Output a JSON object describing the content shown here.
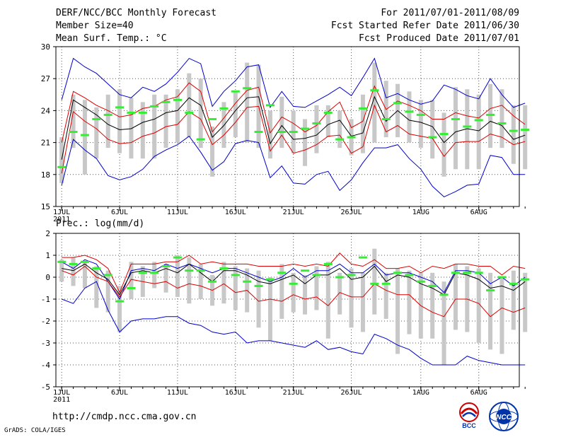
{
  "header": {
    "title": "DERF/NCC/BCC Monthly Forecast",
    "member_size": "Member Size=40",
    "variable1": "Mean Surf. Temp.: °C",
    "period": "For 2011/07/01-2011/08/09",
    "started": "Fcst Started Refer Date 2011/06/30",
    "produced": "Fcst Produced Date 2011/07/01"
  },
  "footer": {
    "url": "http://cmdp.ncc.cma.gov.cn",
    "credit": "GrADS: COLA/IGES",
    "logo1": "BCC",
    "logo2": "NCC"
  },
  "colors": {
    "bar": "#c8c8c8",
    "green": "#33ee33",
    "mean": "#000000",
    "sd": "#dd0000",
    "minmax": "#0000cc",
    "grid": "#555555"
  },
  "chart_data": [
    {
      "type": "line",
      "name": "temperature",
      "ylabel": "Mean Surf. Temp.: °C",
      "ylim": [
        15,
        30
      ],
      "yticks": [
        15,
        18,
        21,
        24,
        27,
        30
      ],
      "xlim": [
        0.5,
        40.5
      ],
      "xticks": [
        {
          "day": 1,
          "label": "1JUL",
          "sub": "2011"
        },
        {
          "day": 6,
          "label": "6JUL"
        },
        {
          "day": 11,
          "label": "11JUL"
        },
        {
          "day": 16,
          "label": "16JUL"
        },
        {
          "day": 21,
          "label": "21JUL"
        },
        {
          "day": 26,
          "label": "26JUL"
        },
        {
          "day": 32,
          "label": "1AUG"
        },
        {
          "day": 37,
          "label": "6AUG"
        }
      ],
      "series": [
        {
          "name": "max",
          "values": [
            25.0,
            28.9,
            28.1,
            27.5,
            26.5,
            25.5,
            25.2,
            26.2,
            25.8,
            26.5,
            27.6,
            28.9,
            28.4,
            24.4,
            25.8,
            26.8,
            28.1,
            28.3,
            24.3,
            25.8,
            24.4,
            24.3,
            24.9,
            25.5,
            26.2,
            25.4,
            27.1,
            28.9,
            25.2,
            25.6,
            25.0,
            24.6,
            24.9,
            26.4,
            26.0,
            25.4,
            25.1,
            27.0,
            25.5,
            24.3,
            24.7
          ]
        },
        {
          "name": "sd_upper",
          "values": [
            21.0,
            25.8,
            25.2,
            24.5,
            24.0,
            23.4,
            23.6,
            24.2,
            24.4,
            25.0,
            25.3,
            26.6,
            25.8,
            22.0,
            23.3,
            24.7,
            25.9,
            26.2,
            21.9,
            23.4,
            22.8,
            22.0,
            22.6,
            23.9,
            24.8,
            22.4,
            23.0,
            26.3,
            24.1,
            24.9,
            24.5,
            24.0,
            23.2,
            23.2,
            23.8,
            23.5,
            23.3,
            24.2,
            24.5,
            23.5,
            22.7
          ]
        },
        {
          "name": "mean",
          "values": [
            19.4,
            25.0,
            24.3,
            23.6,
            22.7,
            22.2,
            22.3,
            22.9,
            23.2,
            23.8,
            24.0,
            25.2,
            24.5,
            21.5,
            22.6,
            24.0,
            25.2,
            25.3,
            20.9,
            22.6,
            21.3,
            21.4,
            21.7,
            22.7,
            23.1,
            21.6,
            21.9,
            25.3,
            23.0,
            24.0,
            23.1,
            22.9,
            22.5,
            21.0,
            22.0,
            22.3,
            22.1,
            23.0,
            22.6,
            21.3,
            21.7
          ]
        },
        {
          "name": "sd_lower",
          "values": [
            18.1,
            23.9,
            23.0,
            22.3,
            21.3,
            20.9,
            21.0,
            21.6,
            21.9,
            22.5,
            22.7,
            23.9,
            23.2,
            20.8,
            21.7,
            22.9,
            24.3,
            24.4,
            20.2,
            21.7,
            20.0,
            20.3,
            20.8,
            21.6,
            21.7,
            20.0,
            20.6,
            24.5,
            22.0,
            22.6,
            21.8,
            21.6,
            21.4,
            19.7,
            21.0,
            21.1,
            21.1,
            21.8,
            21.5,
            20.8,
            21.1
          ]
        },
        {
          "name": "min",
          "values": [
            17.0,
            21.3,
            20.3,
            19.5,
            17.9,
            17.5,
            17.8,
            18.5,
            19.7,
            20.3,
            20.8,
            21.6,
            20.1,
            18.4,
            19.2,
            20.9,
            21.2,
            21.0,
            17.7,
            18.8,
            17.2,
            17.1,
            18.0,
            18.3,
            16.5,
            17.5,
            19.1,
            20.5,
            20.5,
            20.8,
            19.5,
            18.5,
            16.9,
            15.9,
            16.4,
            17.0,
            17.1,
            19.8,
            19.6,
            18.0,
            18.0
          ]
        },
        {
          "name": "bar_top",
          "values": [
            21.5,
            25.5,
            25.0,
            24.3,
            25.5,
            26.0,
            25.2,
            24.8,
            25.5,
            25.5,
            26.0,
            27.5,
            27.0,
            22.5,
            24.8,
            25.8,
            28.5,
            28.3,
            24.0,
            25.3,
            24.0,
            23.2,
            24.5,
            24.5,
            24.0,
            23.2,
            25.5,
            28.5,
            26.8,
            26.5,
            25.8,
            25.0,
            25.0,
            23.8,
            26.2,
            26.0,
            25.5,
            26.5,
            26.0,
            24.5,
            24.5
          ]
        },
        {
          "name": "bar_bottom",
          "values": [
            17.2,
            20.5,
            18.0,
            19.5,
            20.5,
            20.0,
            19.5,
            19.5,
            19.5,
            20.5,
            21.0,
            21.5,
            20.5,
            17.8,
            20.5,
            21.5,
            21.0,
            20.5,
            19.5,
            20.5,
            20.0,
            18.8,
            20.0,
            21.5,
            20.5,
            19.8,
            20.0,
            21.0,
            21.5,
            21.5,
            21.0,
            20.5,
            19.5,
            17.8,
            18.5,
            18.5,
            18.5,
            20.5,
            20.5,
            19.0,
            18.5
          ]
        },
        {
          "name": "obs_green",
          "values": [
            18.7,
            22.0,
            21.7,
            23.2,
            23.6,
            24.3,
            23.8,
            23.8,
            24.4,
            24.8,
            25.0,
            23.8,
            21.3,
            23.2,
            24.2,
            25.8,
            26.1,
            22.0,
            24.5,
            22.0,
            22.0,
            22.3,
            22.8,
            23.8,
            21.3,
            21.5,
            24.2,
            25.9,
            23.2,
            24.7,
            23.9,
            23.6,
            21.5,
            21.8,
            23.2,
            22.5,
            23.1,
            23.6,
            22.8,
            22.1,
            22.2
          ]
        }
      ]
    },
    {
      "type": "line",
      "name": "precipitation",
      "ylabel": "Prec.: log(mm/d)",
      "ylim": [
        -5,
        2
      ],
      "yticks": [
        -5,
        -4,
        -3,
        -2,
        -1,
        0,
        1,
        2
      ],
      "xlim": [
        0.5,
        40.5
      ],
      "xticks": [
        {
          "day": 1,
          "label": "1JUL",
          "sub": "2011"
        },
        {
          "day": 6,
          "label": "6JUL"
        },
        {
          "day": 11,
          "label": "11JUL"
        },
        {
          "day": 16,
          "label": "16JUL"
        },
        {
          "day": 21,
          "label": "21JUL"
        },
        {
          "day": 26,
          "label": "26JUL"
        },
        {
          "day": 32,
          "label": "1AUG"
        },
        {
          "day": 37,
          "label": "6AUG"
        }
      ],
      "series": [
        {
          "name": "max",
          "values": [
            -1.0,
            -1.2,
            -0.5,
            -0.2,
            -1.5,
            -2.5,
            -2.0,
            -1.9,
            -1.9,
            -1.8,
            -1.8,
            -2.1,
            -2.2,
            -2.5,
            -2.6,
            -2.5,
            -3.0,
            -2.9,
            -2.9,
            -3.0,
            -3.1,
            -3.2,
            -2.9,
            -3.3,
            -3.2,
            -3.4,
            -3.5,
            -2.6,
            -2.8,
            -3.1,
            -3.3,
            -3.7,
            -4.0,
            -4.0,
            -4.0,
            -3.6,
            -3.8,
            -3.9,
            -4.0,
            -4.0,
            -4.0
          ]
        },
        {
          "name": "sd_upper",
          "values": [
            0.9,
            0.9,
            1.0,
            0.8,
            0.4,
            -0.7,
            0.6,
            0.6,
            0.6,
            0.7,
            0.7,
            1.0,
            0.6,
            0.7,
            0.6,
            0.6,
            0.6,
            0.5,
            0.5,
            0.5,
            0.6,
            0.5,
            0.6,
            0.5,
            1.1,
            0.6,
            0.5,
            0.8,
            0.4,
            0.4,
            0.5,
            0.2,
            0.5,
            0.4,
            0.6,
            0.6,
            0.5,
            0.5,
            0.1,
            0.5,
            0.4
          ]
        },
        {
          "name": "mean",
          "values": [
            0.4,
            0.3,
            0.6,
            0.2,
            -0.1,
            -0.8,
            0.2,
            0.3,
            0.2,
            0.4,
            0.2,
            0.6,
            0.2,
            -0.2,
            0.3,
            0.3,
            0.1,
            -0.2,
            -0.3,
            -0.1,
            0.1,
            -0.3,
            0.1,
            0.1,
            0.4,
            -0.1,
            0.0,
            0.5,
            -0.2,
            0.1,
            0.0,
            -0.3,
            -0.5,
            -0.8,
            0.2,
            0.1,
            -0.1,
            -0.5,
            -0.4,
            -0.6,
            -0.2
          ]
        },
        {
          "name": "sd_lower",
          "values": [
            0.3,
            0.1,
            0.5,
            0.0,
            -0.2,
            -0.9,
            -0.1,
            -0.2,
            -0.3,
            -0.2,
            -0.5,
            -0.3,
            -0.4,
            -0.6,
            -0.3,
            -0.7,
            -0.6,
            -1.1,
            -1.0,
            -1.1,
            -0.8,
            -1.0,
            -0.9,
            -1.3,
            -0.7,
            -0.9,
            -0.9,
            -0.3,
            -0.6,
            -0.8,
            -0.8,
            -1.3,
            -1.6,
            -1.8,
            -1.0,
            -1.0,
            -1.2,
            -1.8,
            -1.4,
            -1.6,
            -1.4
          ]
        },
        {
          "name": "min",
          "values": [
            0.7,
            0.4,
            0.8,
            0.6,
            -0.2,
            -1.0,
            0.3,
            0.4,
            0.3,
            0.6,
            0.4,
            0.6,
            0.4,
            0.2,
            0.4,
            0.4,
            0.2,
            0.0,
            -0.2,
            0.0,
            0.4,
            0.0,
            0.3,
            0.3,
            0.6,
            0.2,
            0.2,
            0.6,
            0.1,
            0.2,
            0.2,
            0.0,
            -0.2,
            -0.7,
            0.3,
            0.3,
            0.2,
            -0.3,
            0.0,
            -0.4,
            0.0
          ]
        },
        {
          "name": "bar_top",
          "values": [
            0.8,
            0.9,
            0.7,
            0.5,
            0.3,
            -0.4,
            0.7,
            0.5,
            0.7,
            0.6,
            1.0,
            0.9,
            0.6,
            0.1,
            0.7,
            0.5,
            0.4,
            0.3,
            0.0,
            0.6,
            0.2,
            0.1,
            0.5,
            0.7,
            0.2,
            0.4,
            0.2,
            1.3,
            0.2,
            0.4,
            0.3,
            0.2,
            0.2,
            -0.2,
            0.6,
            0.5,
            0.4,
            0.2,
            0.0,
            0.3,
            0.2
          ]
        },
        {
          "name": "bar_bottom",
          "values": [
            -0.2,
            -0.4,
            -0.5,
            -1.4,
            -1.6,
            -2.5,
            -1.0,
            -0.9,
            -0.5,
            -0.7,
            -0.9,
            -1.2,
            -1.0,
            -1.3,
            -1.2,
            -1.5,
            -1.6,
            -2.3,
            -2.9,
            -1.9,
            -1.6,
            -1.7,
            -1.5,
            -2.8,
            -1.7,
            -2.3,
            -2.5,
            -1.7,
            -1.9,
            -3.5,
            -2.6,
            -2.8,
            -2.8,
            -4.0,
            -2.4,
            -2.5,
            -3.0,
            -3.3,
            -3.5,
            -2.4,
            -2.5
          ]
        },
        {
          "name": "obs_green",
          "values": [
            0.7,
            0.6,
            0.7,
            0.4,
            0.1,
            -1.1,
            -0.5,
            0.2,
            0.2,
            0.5,
            0.9,
            0.3,
            0.3,
            -0.2,
            0.4,
            0.1,
            -0.2,
            -0.4,
            -0.1,
            0.2,
            -0.3,
            0.3,
            0.1,
            0.6,
            0.0,
            0.1,
            0.9,
            -0.3,
            -0.3,
            0.2,
            0.1,
            -0.2,
            -0.4,
            -0.8,
            0.2,
            0.2,
            0.2,
            -0.6,
            0.0,
            -0.3,
            -0.1
          ]
        }
      ]
    }
  ]
}
